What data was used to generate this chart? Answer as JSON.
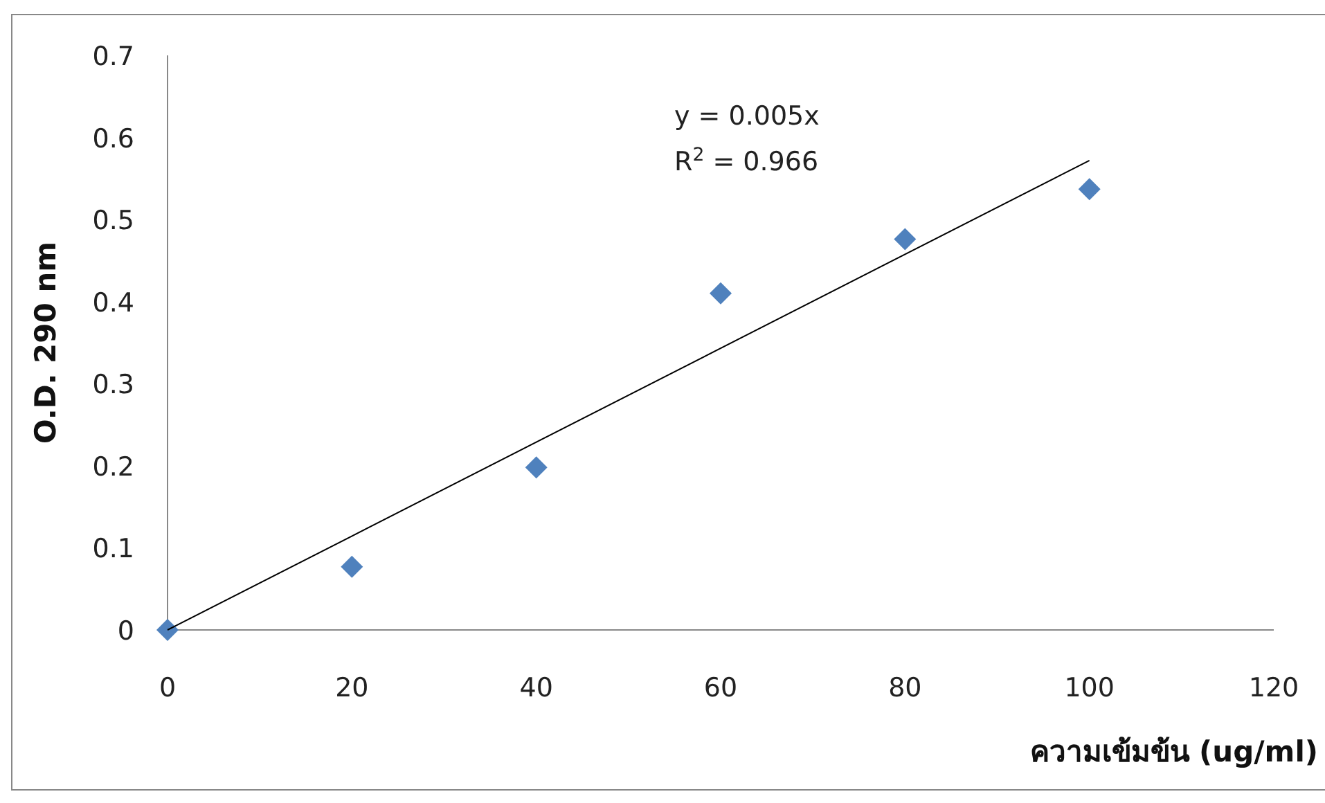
{
  "chart_data": {
    "type": "scatter",
    "xlabel": "ความเข้มข้น (ug/ml)",
    "ylabel": "O.D. 290 nm",
    "xlim": [
      0,
      120
    ],
    "ylim": [
      0,
      0.7
    ],
    "xticks": [
      0,
      20,
      40,
      60,
      80,
      100,
      120
    ],
    "yticks": [
      0,
      0.1,
      0.2,
      0.3,
      0.4,
      0.5,
      0.6,
      0.7
    ],
    "grid": false,
    "marker": "diamond",
    "annotations": [
      "y = 0.005x",
      "R$^{2}$ = 0.966"
    ],
    "series": [
      {
        "color": "#4f81bd",
        "x": [
          0,
          20,
          40,
          60,
          80,
          100
        ],
        "values": [
          0,
          0.077,
          0.198,
          0.41,
          0.476,
          0.537
        ]
      },
      {
        "type": "line",
        "color": "#000000",
        "marker": "none",
        "x": [
          0,
          100
        ],
        "values": [
          0,
          0.572
        ]
      }
    ]
  }
}
